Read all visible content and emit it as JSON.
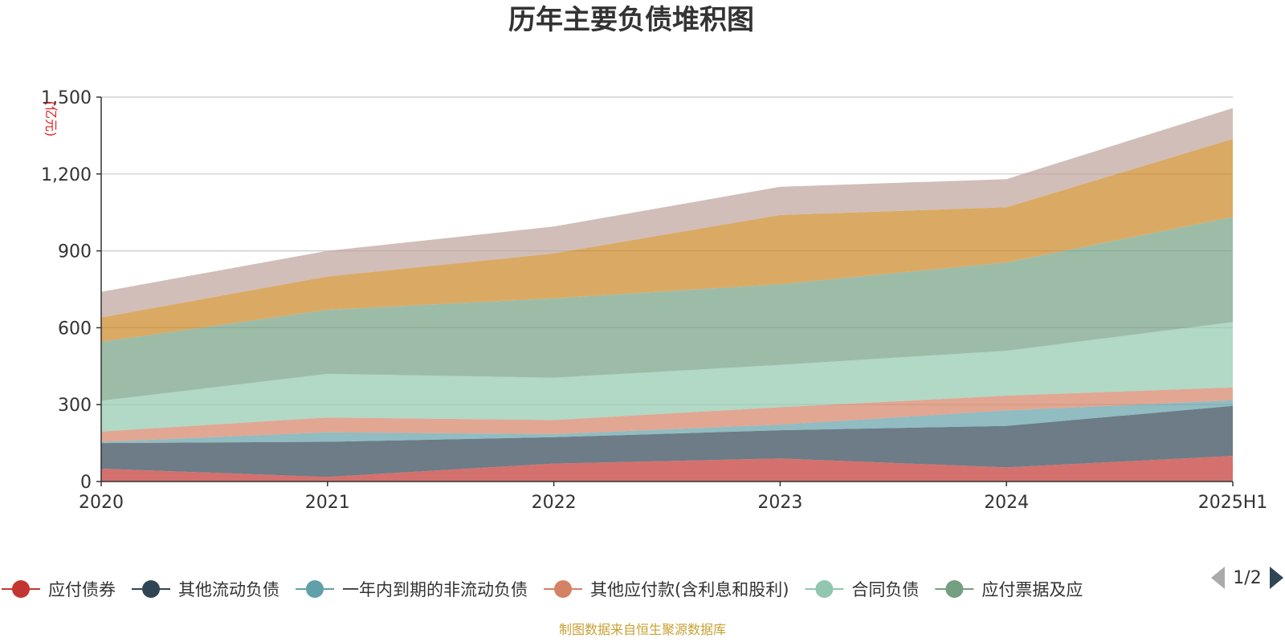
{
  "chart_data": {
    "type": "area",
    "stacked": true,
    "title": "历年主要负债堆积图",
    "ylabel": "(亿元)",
    "xlabel": "",
    "categories": [
      "2020",
      "2021",
      "2022",
      "2023",
      "2024",
      "2025H1"
    ],
    "ylim": [
      0,
      1500
    ],
    "yticks": [
      0,
      300,
      600,
      900,
      1200,
      1500
    ],
    "ytick_labels": [
      "0",
      "300",
      "600",
      "900",
      "1,200",
      "1,500"
    ],
    "grid": true,
    "legend_position": "bottom",
    "series": [
      {
        "name": "应付债券",
        "color": "#c23531",
        "values": [
          50,
          18,
          70,
          90,
          55,
          100
        ],
        "in_legend": true
      },
      {
        "name": "其他流动负债",
        "color": "#2f4554",
        "values": [
          100,
          137,
          103,
          110,
          162,
          195
        ],
        "in_legend": true
      },
      {
        "name": "一年内到期的非流动负债",
        "color": "#61a0a8",
        "values": [
          5,
          37,
          12,
          22,
          60,
          22
        ],
        "in_legend": true
      },
      {
        "name": "其他应付款(含利息和股利)",
        "color": "#d48265",
        "values": [
          40,
          58,
          55,
          68,
          58,
          50
        ],
        "in_legend": true
      },
      {
        "name": "合同负债",
        "color": "#91c7ae",
        "values": [
          120,
          170,
          165,
          165,
          175,
          255
        ],
        "in_legend": true
      },
      {
        "name": "应付票据及应",
        "color": "#749f83",
        "values": [
          230,
          250,
          310,
          315,
          345,
          410
        ],
        "in_legend": true
      },
      {
        "name": "",
        "color": "#ca8622",
        "values": [
          95,
          130,
          175,
          270,
          215,
          305
        ],
        "in_legend": false
      },
      {
        "name": "",
        "color": "#bda29a",
        "values": [
          100,
          100,
          105,
          110,
          110,
          120
        ],
        "in_legend": false
      }
    ]
  },
  "legend": {
    "page": "1/2"
  },
  "source": {
    "text": "制图数据来自恒生聚源数据库",
    "color": "#c8a033"
  },
  "unit_color": "#e02020"
}
